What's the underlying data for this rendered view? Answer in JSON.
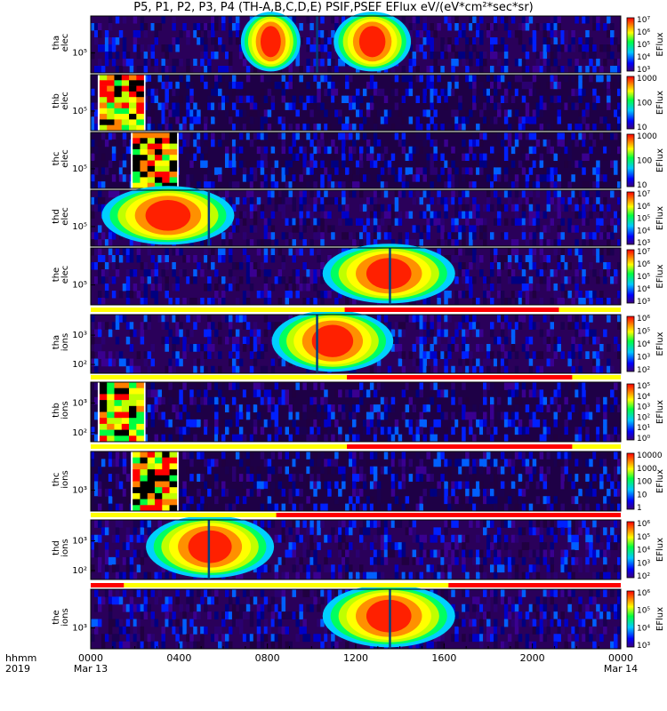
{
  "title": "P5, P1, P2, P3, P4 (TH-A,B,C,D,E) PSIF,PSEF EFlux eV/(eV*cm²*sec*sr)",
  "chart_data": {
    "type": "heatmap",
    "description_units": "EFlux eV/(eV*cm²*sec*sr)",
    "x_axis": {
      "label_rows": [
        "hhmm",
        "2019"
      ],
      "ticks": [
        "0000",
        "0400",
        "0800",
        "1200",
        "1600",
        "2000",
        "0000"
      ],
      "minor_ticks_per_interval": 4,
      "date_labels": [
        {
          "at": "0000",
          "text": "Mar 13"
        },
        {
          "at": "0000",
          "text": "Mar 14"
        }
      ],
      "range_hours": [
        0,
        24
      ]
    },
    "panels": [
      {
        "probe": "tha",
        "species": "elec",
        "ylabel": [
          "tha",
          "elec"
        ],
        "yticks": [
          "10⁵"
        ],
        "colorbar": {
          "label": "EFlux",
          "ticks": [
            "10⁷",
            "10⁶",
            "10⁵",
            "10⁴",
            "10³"
          ],
          "log": true
        },
        "hot_windows_hours": [
          [
            6.8,
            9.5
          ],
          [
            11.0,
            14.5
          ]
        ],
        "gap_hours": [
          10.2,
          10.3
        ],
        "bg": "speckle"
      },
      {
        "probe": "thb",
        "species": "elec",
        "ylabel": [
          "thb",
          "elec"
        ],
        "yticks": [
          "10⁵"
        ],
        "colorbar": {
          "label": "EFlux",
          "ticks": [
            "1000",
            "100",
            "10"
          ],
          "log": true
        },
        "sat_block_hours": [
          0.4,
          2.4
        ],
        "bg": "dark"
      },
      {
        "probe": "thc",
        "species": "elec",
        "ylabel": [
          "thc",
          "elec"
        ],
        "yticks": [
          "10⁵"
        ],
        "colorbar": {
          "label": "EFlux",
          "ticks": [
            "1000",
            "100",
            "10"
          ],
          "log": true
        },
        "sat_block_hours": [
          1.9,
          3.9
        ],
        "bg": "dark"
      },
      {
        "probe": "thd",
        "species": "elec",
        "ylabel": [
          "thd",
          "elec"
        ],
        "yticks": [
          "10⁵"
        ],
        "colorbar": {
          "label": "EFlux",
          "ticks": [
            "10⁷",
            "10⁶",
            "10⁵",
            "10⁴",
            "10³"
          ],
          "log": true
        },
        "hot_windows_hours": [
          [
            0.5,
            6.5
          ]
        ],
        "gap_hours": [
          5.3,
          5.4
        ],
        "bg": "speckle"
      },
      {
        "probe": "the",
        "species": "elec",
        "ylabel": [
          "the",
          "elec"
        ],
        "yticks": [
          "10⁵"
        ],
        "colorbar": {
          "label": "EFlux",
          "ticks": [
            "10⁷",
            "10⁶",
            "10⁵",
            "10⁴",
            "10³"
          ],
          "log": true
        },
        "hot_windows_hours": [
          [
            10.5,
            16.5
          ]
        ],
        "gap_hours": [
          13.5,
          13.6
        ],
        "bg": "speckle",
        "mode_bar": {
          "red_hours": [
            11.5,
            21.2
          ]
        }
      },
      {
        "probe": "tha",
        "species": "ions",
        "ylabel": [
          "tha",
          "ions"
        ],
        "yticks": [
          "10³",
          "10²"
        ],
        "colorbar": {
          "label": "EFlux",
          "ticks": [
            "10⁶",
            "10⁵",
            "10⁴",
            "10³",
            "10²"
          ],
          "log": true
        },
        "hot_windows_hours": [
          [
            8.2,
            13.7
          ]
        ],
        "gap_hours": [
          10.2,
          10.3
        ],
        "bg": "speckle",
        "mode_bar": {
          "red_hours": [
            11.6,
            21.8
          ]
        }
      },
      {
        "probe": "thb",
        "species": "ions",
        "ylabel": [
          "thb",
          "ions"
        ],
        "yticks": [
          "10³",
          "10²"
        ],
        "colorbar": {
          "label": "EFlux",
          "ticks": [
            "10⁵",
            "10⁴",
            "10³",
            "10²",
            "10¹",
            "10⁰"
          ],
          "log": true
        },
        "sat_block_hours": [
          0.4,
          2.4
        ],
        "bg": "dark",
        "mode_bar": {
          "red_hours": [
            11.6,
            21.8
          ]
        }
      },
      {
        "probe": "thc",
        "species": "ions",
        "ylabel": [
          "thc",
          "ions"
        ],
        "yticks": [
          "10³"
        ],
        "colorbar": {
          "label": "EFlux",
          "ticks": [
            "10000",
            "1000",
            "100",
            "10",
            "1"
          ],
          "log": true
        },
        "sat_block_hours": [
          1.9,
          3.9
        ],
        "bg": "dark",
        "mode_bar": {
          "red_hours": [
            8.4,
            24.0
          ]
        }
      },
      {
        "probe": "thd",
        "species": "ions",
        "ylabel": [
          "thd",
          "ions"
        ],
        "yticks": [
          "10³",
          "10²"
        ],
        "colorbar": {
          "label": "EFlux",
          "ticks": [
            "10⁶",
            "10⁵",
            "10⁴",
            "10³",
            "10²"
          ],
          "log": true
        },
        "hot_windows_hours": [
          [
            2.5,
            8.3
          ]
        ],
        "gap_hours": [
          5.3,
          5.4
        ],
        "bg": "speckle",
        "mode_bar": {
          "red_hours": [
            0,
            1.5
          ],
          "red_hours_2": [
            16.2,
            24.0
          ]
        }
      },
      {
        "probe": "the",
        "species": "ions",
        "ylabel": [
          "the",
          "ions"
        ],
        "yticks": [
          "10³"
        ],
        "colorbar": {
          "label": "EFlux",
          "ticks": [
            "10⁶",
            "10⁵",
            "10⁴",
            "10³"
          ],
          "log": true
        },
        "hot_windows_hours": [
          [
            10.5,
            16.5
          ]
        ],
        "gap_hours": [
          13.5,
          13.6
        ],
        "bg": "speckle"
      }
    ]
  }
}
